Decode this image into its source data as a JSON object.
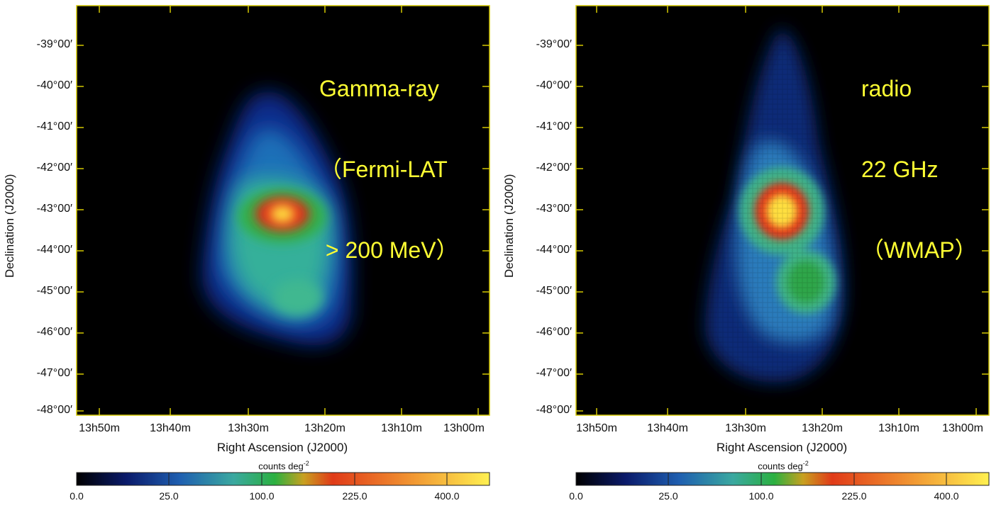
{
  "colors": {
    "background": "#000000",
    "frame": "#d4c800",
    "annotation": "#ffff33"
  },
  "colorbar": {
    "label": "counts deg",
    "label_exponent": "-2",
    "ticks": [
      "0.0",
      "25.0",
      "100.0",
      "225.0",
      "400.0"
    ]
  },
  "axes": {
    "x_title": "Right Ascension (J2000)",
    "y_title": "Declination (J2000)",
    "dec_ticks": [
      "-39°00′",
      "-40°00′",
      "-41°00′",
      "-42°00′",
      "-43°00′",
      "-44°00′",
      "-45°00′",
      "-46°00′",
      "-47°00′",
      "-48°00′"
    ],
    "ra_ticks": [
      "13h50m",
      "13h40m",
      "13h30m",
      "13h20m",
      "13h10m",
      "13h00m"
    ]
  },
  "panels": [
    {
      "name": "gamma-ray",
      "annotation": [
        "Gamma-ray",
        "（Fermi-LAT",
        " > 200 MeV）"
      ]
    },
    {
      "name": "radio",
      "annotation": [
        "radio",
        "22 GHz",
        "（WMAP）"
      ]
    }
  ]
}
